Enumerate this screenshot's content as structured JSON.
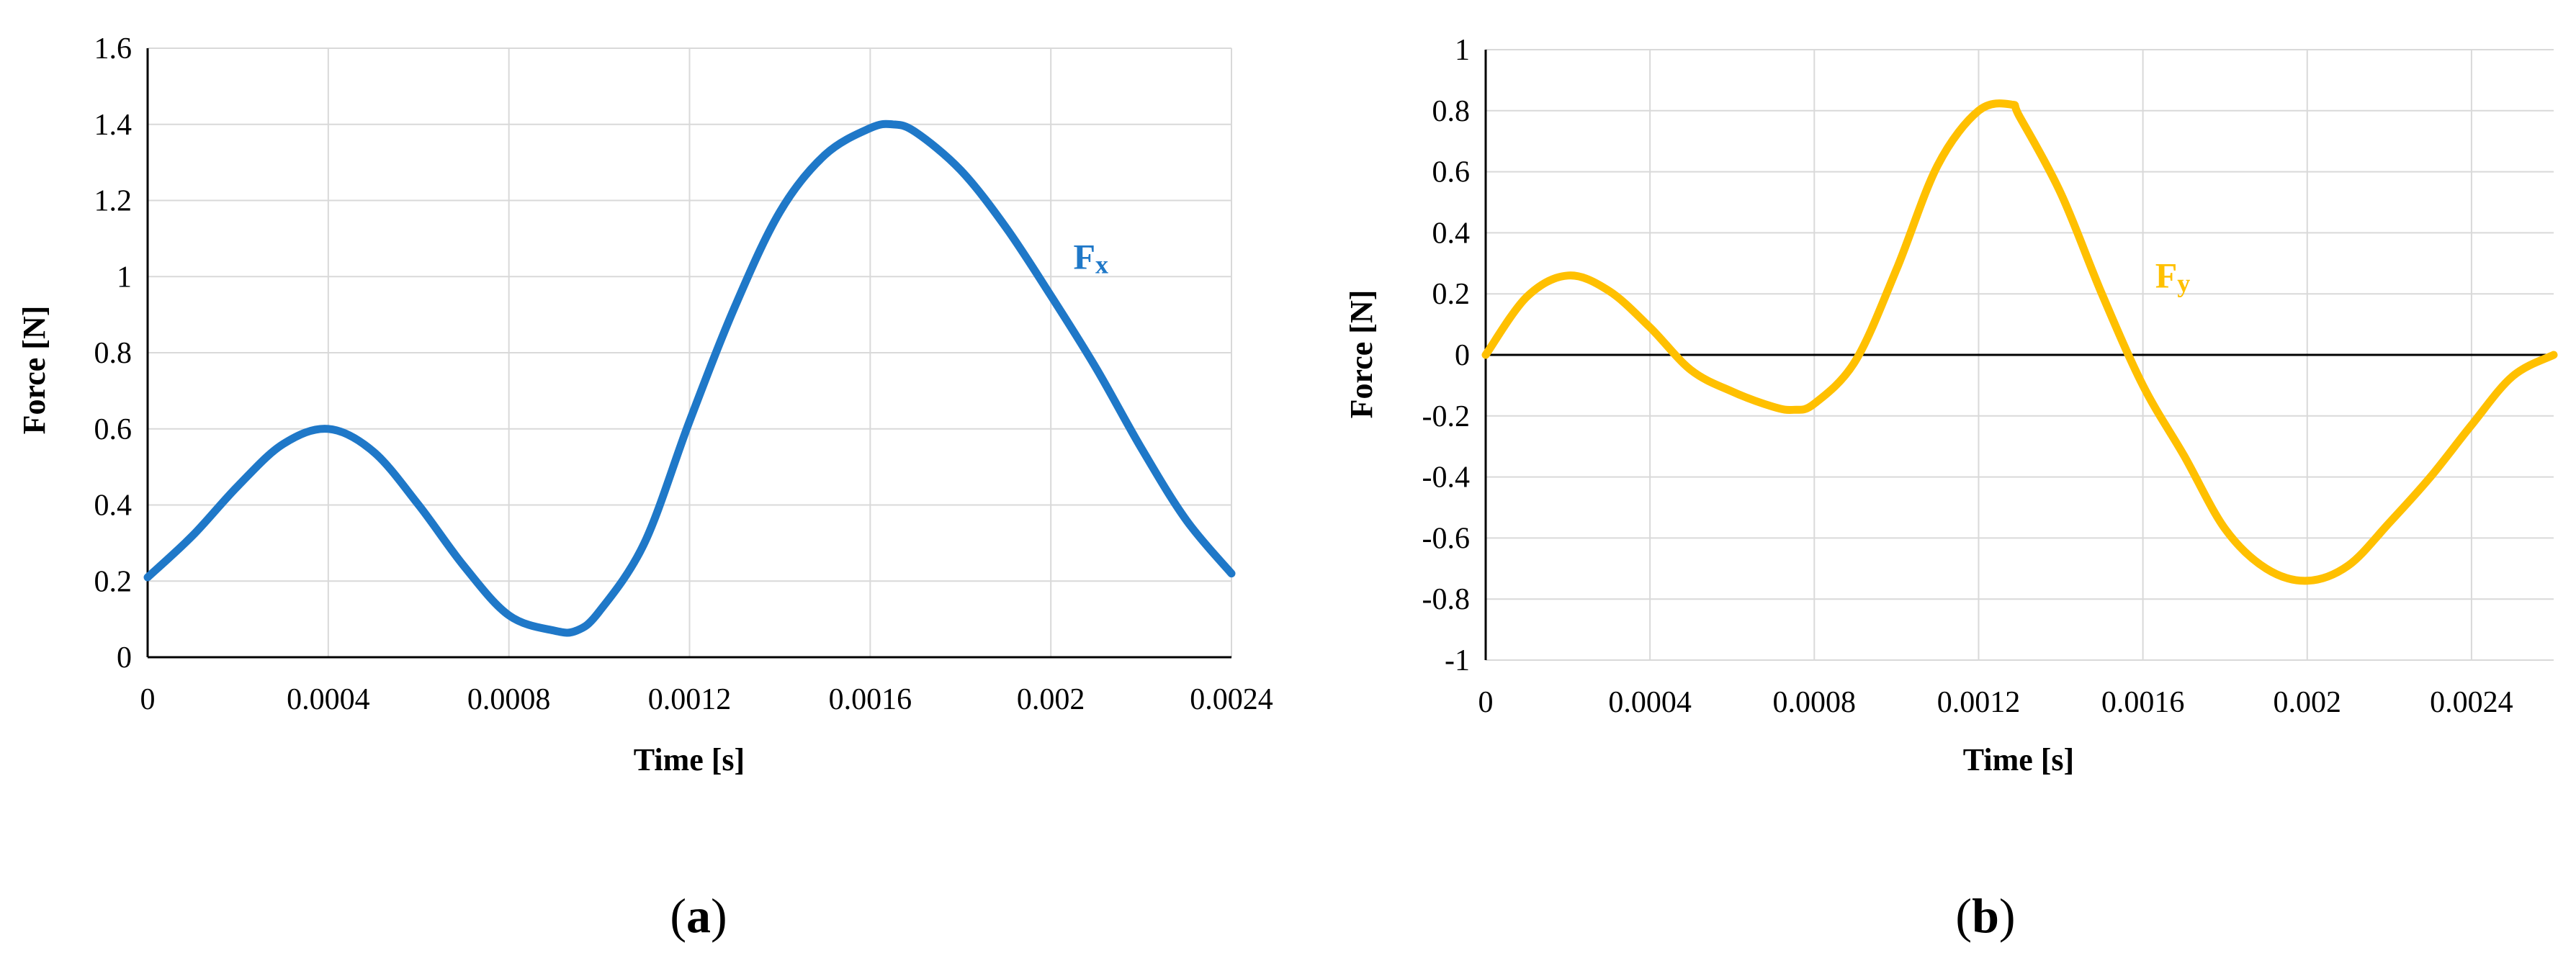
{
  "colors": {
    "fx": "#1f78c8",
    "fy": "#ffc000",
    "grid": "#d9d9d9",
    "axis": "#000000"
  },
  "panels": [
    {
      "open": "(",
      "letter": "a",
      "close": ")"
    },
    {
      "open": "(",
      "letter": "b",
      "close": ")"
    }
  ],
  "chart_data": [
    {
      "type": "line",
      "xlabel": "Time [s]",
      "ylabel": "Force [N]",
      "xlim": [
        0,
        0.0024
      ],
      "ylim": [
        0,
        1.6
      ],
      "x_ticks": [
        0,
        0.0004,
        0.0008,
        0.0012,
        0.0016,
        0.002,
        0.0024
      ],
      "x_tick_labels": [
        "0",
        "0.0004",
        "0.0008",
        "0.0012",
        "0.0016",
        "0.002",
        "0.0024"
      ],
      "y_ticks": [
        0,
        0.2,
        0.4,
        0.6,
        0.8,
        1,
        1.2,
        1.4,
        1.6
      ],
      "y_tick_labels": [
        "0",
        "0.2",
        "0.4",
        "0.6",
        "0.8",
        "1",
        "1.2",
        "1.4",
        "1.6"
      ],
      "grid": true,
      "series": [
        {
          "name": "Fx",
          "color": "#1f78c8",
          "x": [
            0,
            0.0001,
            0.0002,
            0.0003,
            0.0004,
            0.0005,
            0.0006,
            0.0007,
            0.0008,
            0.0009,
            0.00095,
            0.001,
            0.0011,
            0.0012,
            0.0013,
            0.0014,
            0.0015,
            0.0016,
            0.00165,
            0.0017,
            0.0018,
            0.0019,
            0.002,
            0.0021,
            0.0022,
            0.0023,
            0.0024
          ],
          "y": [
            0.21,
            0.32,
            0.45,
            0.56,
            0.6,
            0.54,
            0.4,
            0.24,
            0.11,
            0.07,
            0.07,
            0.12,
            0.3,
            0.62,
            0.92,
            1.17,
            1.32,
            1.39,
            1.4,
            1.38,
            1.28,
            1.13,
            0.95,
            0.76,
            0.55,
            0.36,
            0.22
          ]
        }
      ],
      "annotations": [
        {
          "text": "F",
          "sub": "x",
          "x": 0.00205,
          "y": 1.02
        }
      ]
    },
    {
      "type": "line",
      "xlabel": "Time [s]",
      "ylabel": "Force [N]",
      "xlim": [
        0,
        0.0026
      ],
      "ylim": [
        -1,
        1
      ],
      "x_ticks": [
        0,
        0.0004,
        0.0008,
        0.0012,
        0.0016,
        0.002,
        0.0024
      ],
      "x_tick_labels": [
        "0",
        "0.0004",
        "0.0008",
        "0.0012",
        "0.0016",
        "0.002",
        "0.0024"
      ],
      "y_ticks": [
        -1,
        -0.8,
        -0.6,
        -0.4,
        -0.2,
        0,
        0.2,
        0.4,
        0.6,
        0.8,
        1
      ],
      "y_tick_labels": [
        "-1",
        "-0.8",
        "-0.6",
        "-0.4",
        "-0.2",
        "0",
        "0.2",
        "0.4",
        "0.6",
        "0.8",
        "1"
      ],
      "grid": true,
      "series": [
        {
          "name": "Fy",
          "color": "#ffc000",
          "x": [
            0,
            0.0001,
            0.0002,
            0.0003,
            0.0004,
            0.0005,
            0.0006,
            0.0007,
            0.00075,
            0.0008,
            0.0009,
            0.001,
            0.0011,
            0.0012,
            0.00128,
            0.0013,
            0.0014,
            0.0015,
            0.0016,
            0.0017,
            0.0018,
            0.0019,
            0.002,
            0.0021,
            0.0022,
            0.0023,
            0.0024,
            0.0025,
            0.0026
          ],
          "y": [
            0,
            0.19,
            0.26,
            0.21,
            0.09,
            -0.05,
            -0.12,
            -0.17,
            -0.18,
            -0.16,
            -0.02,
            0.28,
            0.62,
            0.8,
            0.82,
            0.78,
            0.53,
            0.2,
            -0.1,
            -0.33,
            -0.57,
            -0.7,
            -0.74,
            -0.69,
            -0.55,
            -0.4,
            -0.23,
            -0.07,
            0
          ]
        }
      ],
      "annotations": [
        {
          "text": "F",
          "sub": "y",
          "x": 0.00163,
          "y": 0.22
        }
      ]
    }
  ]
}
